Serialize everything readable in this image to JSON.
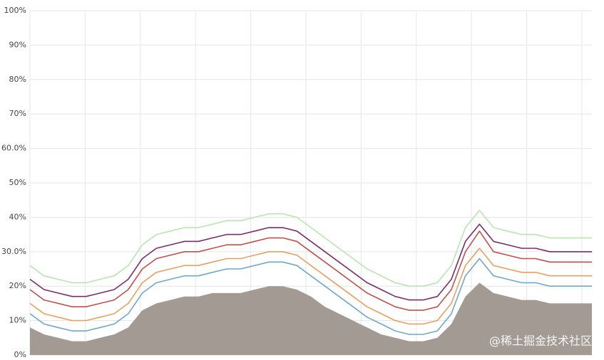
{
  "chart_data": {
    "type": "line",
    "x": [
      0,
      1,
      2,
      3,
      4,
      5,
      6,
      7,
      8,
      9,
      10,
      11,
      12,
      13,
      14,
      15,
      16,
      17,
      18,
      19,
      20,
      21,
      22,
      23,
      24,
      25,
      26,
      27,
      28,
      29,
      30,
      31,
      32,
      33,
      34,
      35,
      36,
      37,
      38,
      39,
      40
    ],
    "xlim": [
      0,
      40
    ],
    "ylim": [
      0,
      100
    ],
    "yticks": [
      {
        "value": 0,
        "label": "0%"
      },
      {
        "value": 10,
        "label": "10%"
      },
      {
        "value": 20,
        "label": "20%"
      },
      {
        "value": 30,
        "label": "30.0%"
      },
      {
        "value": 40,
        "label": "40%"
      },
      {
        "value": 50,
        "label": "50%"
      },
      {
        "value": 60,
        "label": "60.0%"
      },
      {
        "value": 70,
        "label": "70%"
      },
      {
        "value": 80,
        "label": "80%"
      },
      {
        "value": 90,
        "label": "90%"
      },
      {
        "value": 100,
        "label": "100%"
      }
    ],
    "grid": true,
    "series": [
      {
        "color": "#a39a93",
        "area": true,
        "values": [
          8,
          6,
          5,
          4,
          4,
          5,
          6,
          8,
          13,
          15,
          16,
          17,
          17,
          18,
          18,
          18,
          19,
          20,
          20,
          19,
          17,
          14,
          12,
          10,
          8,
          6,
          5,
          4,
          4,
          5,
          9,
          17,
          21,
          18,
          17,
          16,
          16,
          15,
          15,
          15,
          15
        ]
      },
      {
        "color": "#b8e6b0",
        "values": [
          26,
          23,
          22,
          21,
          21,
          22,
          23,
          26,
          32,
          35,
          36,
          37,
          37,
          38,
          39,
          39,
          40,
          41,
          41,
          40,
          37,
          34,
          31,
          28,
          25,
          23,
          21,
          20,
          20,
          21,
          26,
          37,
          42,
          37,
          36,
          35,
          35,
          34,
          34,
          34,
          34
        ]
      },
      {
        "color": "#6fa8c8",
        "values": [
          12,
          9,
          8,
          7,
          7,
          8,
          9,
          12,
          18,
          21,
          22,
          23,
          23,
          24,
          25,
          25,
          26,
          27,
          27,
          26,
          23,
          20,
          17,
          14,
          11,
          9,
          7,
          6,
          6,
          7,
          12,
          23,
          28,
          23,
          22,
          21,
          21,
          20,
          20,
          20,
          20
        ]
      },
      {
        "color": "#e8a060",
        "values": [
          15,
          12,
          11,
          10,
          10,
          11,
          12,
          15,
          21,
          24,
          25,
          26,
          26,
          27,
          28,
          28,
          29,
          30,
          30,
          29,
          26,
          23,
          20,
          17,
          14,
          12,
          10,
          9,
          9,
          10,
          15,
          26,
          31,
          26,
          25,
          24,
          24,
          23,
          23,
          23,
          23
        ]
      },
      {
        "color": "#c0504d",
        "values": [
          19,
          16,
          15,
          14,
          14,
          15,
          16,
          19,
          25,
          28,
          29,
          30,
          30,
          31,
          32,
          32,
          33,
          34,
          34,
          33,
          30,
          27,
          24,
          21,
          18,
          16,
          14,
          13,
          13,
          14,
          19,
          30,
          36,
          30,
          29,
          28,
          28,
          27,
          27,
          27,
          27
        ]
      },
      {
        "color": "#7b2d6b",
        "values": [
          22,
          19,
          18,
          17,
          17,
          18,
          19,
          22,
          28,
          31,
          32,
          33,
          33,
          34,
          35,
          35,
          36,
          37,
          37,
          36,
          33,
          30,
          27,
          24,
          21,
          19,
          17,
          16,
          16,
          17,
          22,
          33,
          38,
          33,
          32,
          31,
          31,
          30,
          30,
          30,
          30
        ]
      }
    ],
    "watermark": "@稀土掘金技术社区"
  }
}
